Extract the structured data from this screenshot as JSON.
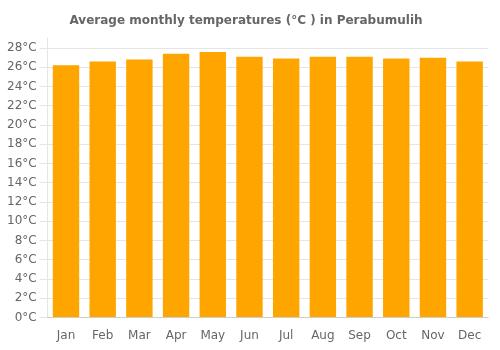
{
  "chart_data": {
    "type": "bar",
    "title": "Average monthly temperatures (°C ) in Perabumulih",
    "categories": [
      "Jan",
      "Feb",
      "Mar",
      "Apr",
      "May",
      "Jun",
      "Jul",
      "Aug",
      "Sep",
      "Oct",
      "Nov",
      "Dec"
    ],
    "values": [
      26.2,
      26.6,
      26.8,
      27.4,
      27.6,
      27.1,
      26.9,
      27.1,
      27.1,
      26.9,
      27.0,
      26.6
    ],
    "color": "#FFA500",
    "ylim": [
      0,
      29
    ],
    "yticks": [
      {
        "value": 0,
        "label": "0°C"
      },
      {
        "value": 2,
        "label": "2°C"
      },
      {
        "value": 4,
        "label": "4°C"
      },
      {
        "value": 6,
        "label": "6°C"
      },
      {
        "value": 8,
        "label": "8°C"
      },
      {
        "value": 10,
        "label": "10°C"
      },
      {
        "value": 12,
        "label": "12°C"
      },
      {
        "value": 14,
        "label": "14°C"
      },
      {
        "value": 16,
        "label": "16°C"
      },
      {
        "value": 18,
        "label": "18°C"
      },
      {
        "value": 20,
        "label": "20°C"
      },
      {
        "value": 22,
        "label": "22°C"
      },
      {
        "value": 24,
        "label": "24°C"
      },
      {
        "value": 26,
        "label": "26°C"
      },
      {
        "value": 28,
        "label": "28°C"
      }
    ],
    "grid": true
  }
}
